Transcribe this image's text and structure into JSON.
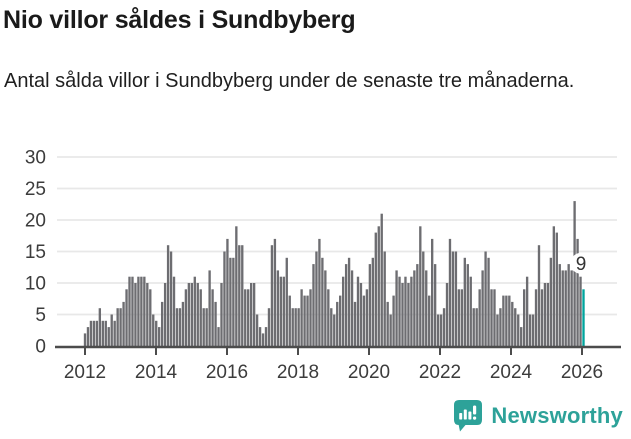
{
  "header": {
    "title": "Nio villor såldes i Sundbyberg",
    "subtitle": "Antal sålda villor i Sundbyberg under de senaste tre månaderna."
  },
  "chart_data": {
    "type": "bar",
    "title": "Nio villor såldes i Sundbyberg",
    "subtitle": "Antal sålda villor i Sundbyberg under de senaste tre månaderna.",
    "xlabel": "",
    "ylabel": "",
    "ylim": [
      0,
      30
    ],
    "yticks": [
      0,
      5,
      10,
      15,
      20,
      25,
      30
    ],
    "x_ticks": [
      2012,
      2014,
      2016,
      2018,
      2020,
      2022,
      2024,
      2026
    ],
    "grid": "horizontal",
    "legend": "none",
    "series": [
      {
        "year": 2012,
        "values": [
          2,
          3,
          4,
          4,
          4,
          6,
          4,
          4,
          3,
          5,
          4,
          6
        ]
      },
      {
        "year": 2013,
        "values": [
          6,
          7,
          9,
          11,
          11,
          10,
          11,
          11,
          11,
          10,
          9,
          5
        ]
      },
      {
        "year": 2014,
        "values": [
          4,
          3,
          7,
          10,
          16,
          15,
          11,
          6,
          6,
          7,
          9,
          10
        ]
      },
      {
        "year": 2015,
        "values": [
          10,
          11,
          10,
          9,
          6,
          6,
          12,
          9,
          7,
          3,
          10,
          15
        ]
      },
      {
        "year": 2016,
        "values": [
          17,
          14,
          14,
          19,
          16,
          16,
          9,
          9,
          10,
          10,
          5,
          3
        ]
      },
      {
        "year": 2017,
        "values": [
          2,
          3,
          6,
          16,
          17,
          12,
          11,
          11,
          14,
          8,
          6,
          6
        ]
      },
      {
        "year": 2018,
        "values": [
          6,
          9,
          8,
          8,
          9,
          13,
          15,
          17,
          14,
          12,
          9,
          6
        ]
      },
      {
        "year": 2019,
        "values": [
          5,
          7,
          8,
          11,
          13,
          14,
          12,
          7,
          11,
          10,
          8,
          9
        ]
      },
      {
        "year": 2020,
        "values": [
          13,
          14,
          18,
          19,
          21,
          15,
          7,
          5,
          8,
          12,
          11,
          10
        ]
      },
      {
        "year": 2021,
        "values": [
          11,
          10,
          11,
          12,
          13,
          19,
          15,
          12,
          8,
          17,
          13,
          5
        ]
      },
      {
        "year": 2022,
        "values": [
          5,
          6,
          10,
          17,
          15,
          15,
          9,
          9,
          14,
          13,
          11,
          6
        ]
      },
      {
        "year": 2023,
        "values": [
          6,
          9,
          12,
          15,
          14,
          9,
          9,
          5,
          6,
          8,
          8,
          8
        ]
      },
      {
        "year": 2024,
        "values": [
          7,
          6,
          5,
          3,
          9,
          11,
          5,
          5,
          9,
          16,
          9,
          10
        ]
      },
      {
        "year": 2025,
        "values": [
          10,
          14,
          19,
          18,
          13,
          12,
          12,
          13,
          12,
          23,
          17,
          11
        ]
      },
      {
        "year": 2026,
        "values": [
          9
        ]
      }
    ],
    "highlight": {
      "position": "last",
      "value": 9,
      "label": "9"
    },
    "colors": {
      "bar": "#6d6d71",
      "highlight": "#00a49d",
      "grid": "#e8e8e8",
      "axis": "#4c4c4c",
      "tick_text": "#3c3c3c",
      "label_text": "#333333",
      "label_halo": "#ffffff"
    }
  },
  "footer": {
    "brand": "Newsworthy",
    "logo_icon": "newsworthy-speech-bubble-bar-chart-icon",
    "brand_color": "#2da299"
  }
}
